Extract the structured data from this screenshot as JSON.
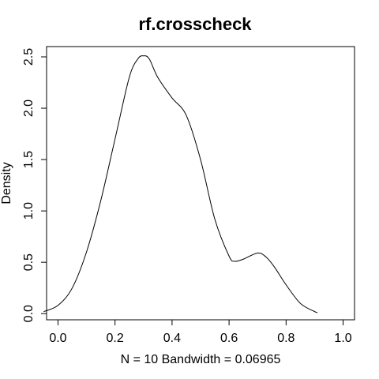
{
  "chart_data": {
    "type": "line",
    "title": "rf.crosscheck",
    "xlabel": "N = 10   Bandwidth = 0.06965",
    "ylabel": "Density",
    "xlim": [
      -0.04,
      1.04
    ],
    "ylim": [
      -0.06,
      2.6
    ],
    "xticks": [
      0.0,
      0.2,
      0.4,
      0.6,
      0.8,
      1.0
    ],
    "xtick_labels": [
      "0.0",
      "0.2",
      "0.4",
      "0.6",
      "0.8",
      "1.0"
    ],
    "yticks": [
      0.0,
      0.5,
      1.0,
      1.5,
      2.0,
      2.5
    ],
    "ytick_labels": [
      "0.0",
      "0.5",
      "1.0",
      "1.5",
      "2.0",
      "2.5"
    ],
    "grid": false,
    "series": [
      {
        "x": [
          -0.05,
          0.0,
          0.05,
          0.1,
          0.15,
          0.2,
          0.25,
          0.28,
          0.3,
          0.32,
          0.35,
          0.4,
          0.45,
          0.5,
          0.55,
          0.6,
          0.62,
          0.65,
          0.7,
          0.73,
          0.76,
          0.8,
          0.85,
          0.9,
          0.91
        ],
        "y": [
          0.02,
          0.08,
          0.25,
          0.6,
          1.1,
          1.7,
          2.3,
          2.48,
          2.51,
          2.48,
          2.3,
          2.1,
          1.93,
          1.5,
          0.92,
          0.56,
          0.51,
          0.53,
          0.59,
          0.55,
          0.45,
          0.28,
          0.1,
          0.02,
          0.01
        ]
      }
    ]
  }
}
